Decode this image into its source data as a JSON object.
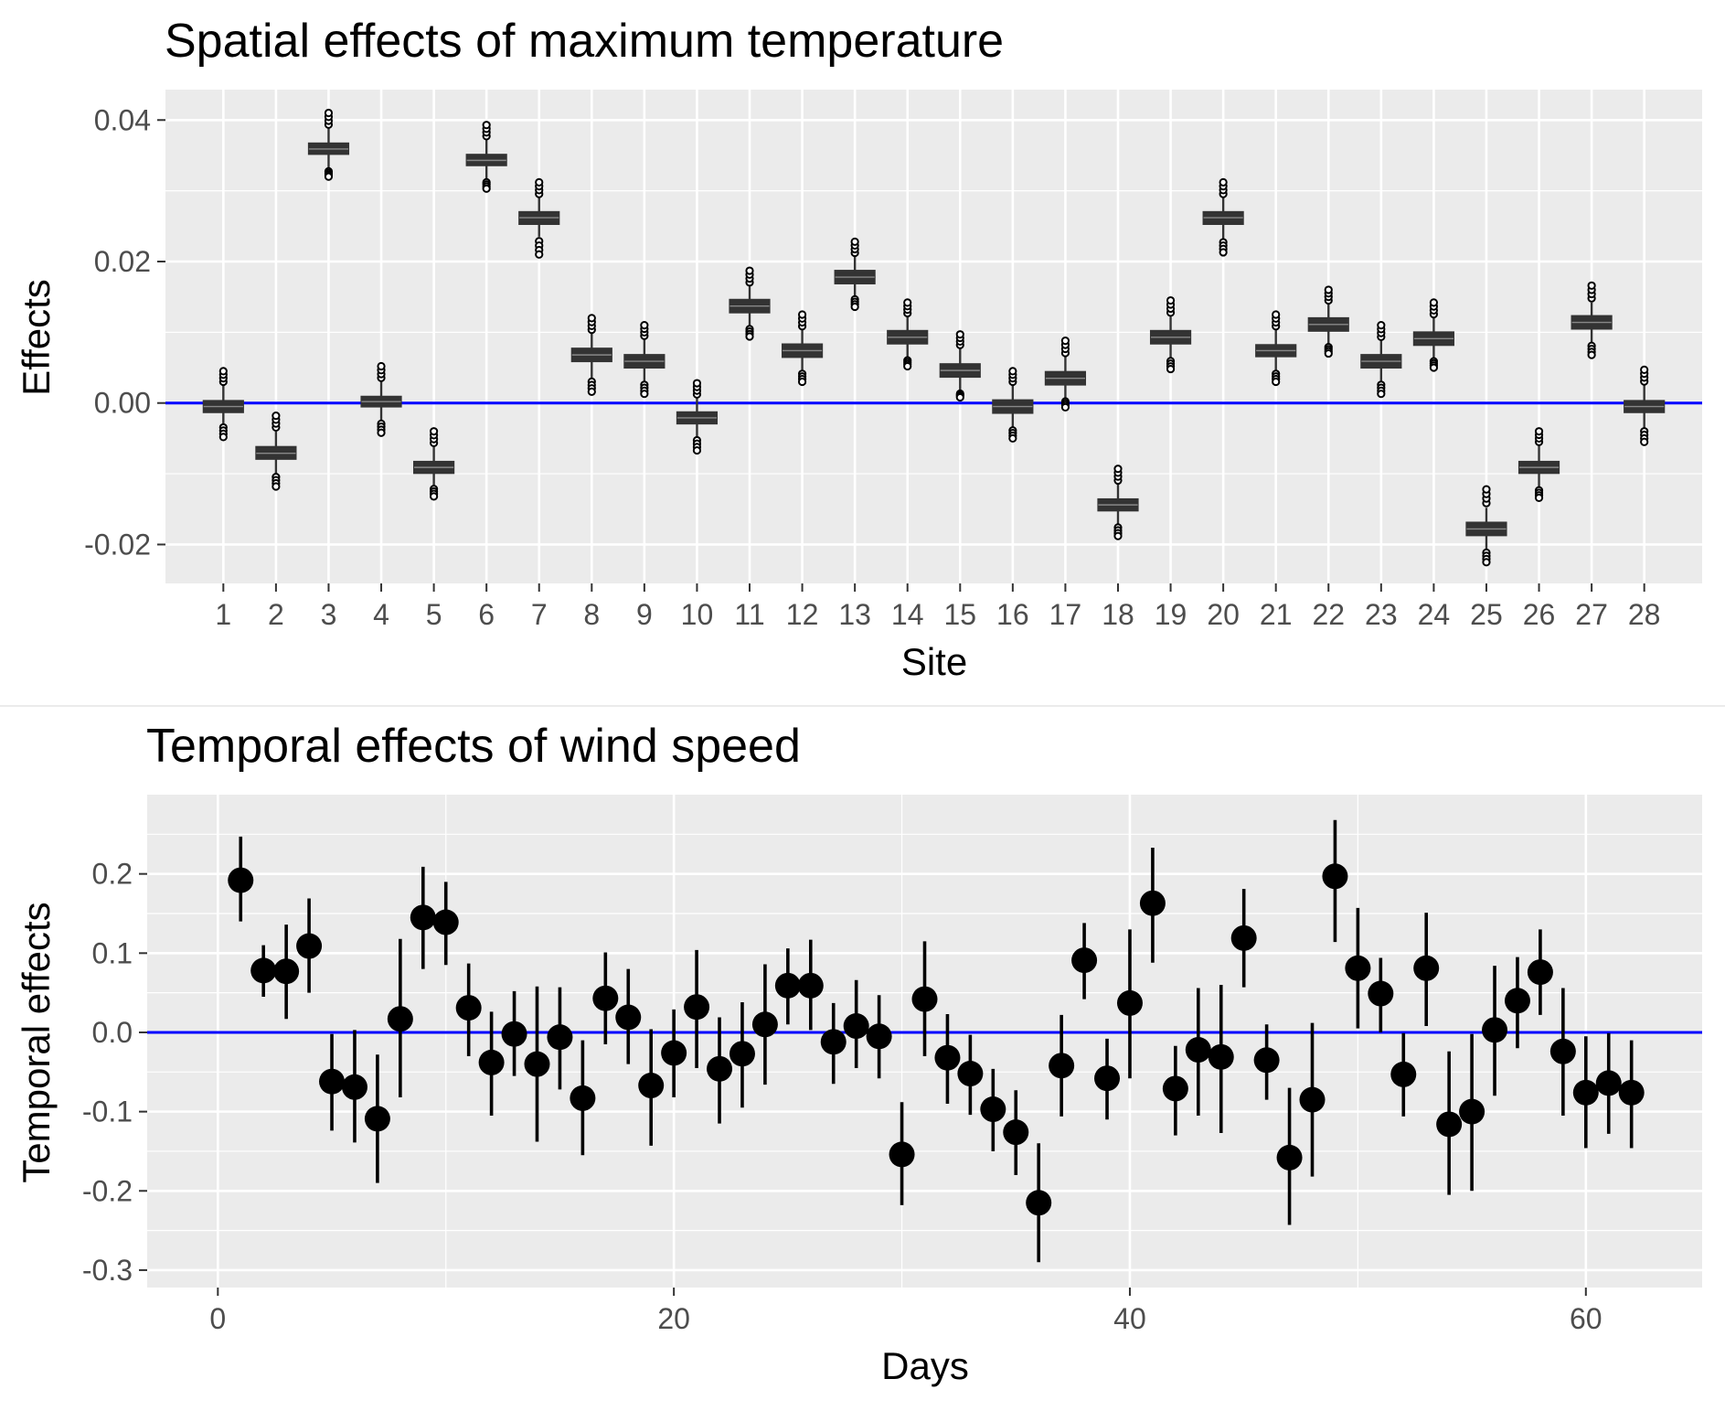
{
  "chart_data": [
    {
      "type": "box",
      "title": "Spatial effects of maximum temperature",
      "xlabel": "Site",
      "ylabel": "Effects",
      "categories": [
        "1",
        "2",
        "3",
        "4",
        "5",
        "6",
        "7",
        "8",
        "9",
        "10",
        "11",
        "12",
        "13",
        "14",
        "15",
        "16",
        "17",
        "18",
        "19",
        "20",
        "21",
        "22",
        "23",
        "24",
        "25",
        "26",
        "27",
        "28"
      ],
      "medians": [
        -0.0005,
        -0.0071,
        0.0359,
        0.0002,
        -0.0091,
        0.0343,
        0.0262,
        0.0068,
        0.0059,
        -0.0021,
        0.0137,
        0.0074,
        0.0178,
        0.0093,
        0.0046,
        -0.0005,
        0.0035,
        -0.0144,
        0.0093,
        0.0262,
        0.0074,
        0.0111,
        0.0059,
        0.0091,
        -0.0178,
        -0.0091,
        0.0114,
        -0.0005
      ],
      "q1": [
        -0.0013,
        -0.0079,
        0.0352,
        -0.0005,
        -0.0099,
        0.0336,
        0.0253,
        0.0059,
        0.005,
        -0.0029,
        0.0128,
        0.0065,
        0.0169,
        0.0084,
        0.0037,
        -0.0014,
        0.0026,
        -0.0152,
        0.0084,
        0.0253,
        0.0066,
        0.0102,
        0.005,
        0.0082,
        -0.0187,
        -0.0099,
        0.0105,
        -0.0013
      ],
      "q3": [
        0.0003,
        -0.0062,
        0.0367,
        0.0009,
        -0.0083,
        0.0351,
        0.027,
        0.0077,
        0.0068,
        -0.0013,
        0.0146,
        0.0083,
        0.0187,
        0.0102,
        0.0055,
        0.0004,
        0.0044,
        -0.0136,
        0.0102,
        0.027,
        0.0082,
        0.012,
        0.0068,
        0.01,
        -0.0169,
        -0.0083,
        0.0123,
        0.0003
      ],
      "whisker_low": [
        -0.003,
        -0.01,
        0.033,
        -0.0025,
        -0.0118,
        0.0315,
        0.0235,
        0.0035,
        0.003,
        -0.0048,
        0.0108,
        0.0045,
        0.015,
        0.0063,
        0.0015,
        -0.0035,
        0.0005,
        -0.0172,
        0.0063,
        0.0232,
        0.0045,
        0.0082,
        0.003,
        0.0062,
        -0.0207,
        -0.012,
        0.0085,
        -0.0035
      ],
      "whisker_high": [
        0.0025,
        -0.004,
        0.0388,
        0.003,
        -0.0062,
        0.0372,
        0.029,
        0.0098,
        0.009,
        0.0007,
        0.0165,
        0.0103,
        0.0207,
        0.0122,
        0.0077,
        0.0025,
        0.0065,
        -0.0115,
        0.0122,
        0.029,
        0.0103,
        0.014,
        0.0088,
        0.012,
        -0.0148,
        -0.006,
        0.0142,
        0.0025
      ],
      "outlier_low": [
        -0.0048,
        -0.0118,
        0.032,
        -0.0042,
        -0.0132,
        0.0303,
        0.021,
        0.0016,
        0.0013,
        -0.0067,
        0.0094,
        0.003,
        0.0136,
        0.0052,
        0.0008,
        -0.005,
        -0.0006,
        -0.0188,
        0.0048,
        0.0213,
        0.003,
        0.007,
        0.0013,
        0.005,
        -0.0225,
        -0.0134,
        0.0068,
        -0.0055
      ],
      "outlier_high": [
        0.0045,
        -0.0018,
        0.041,
        0.0052,
        -0.004,
        0.0393,
        0.0312,
        0.012,
        0.011,
        0.0028,
        0.0187,
        0.0125,
        0.0228,
        0.0142,
        0.0097,
        0.0045,
        0.0088,
        -0.0093,
        0.0145,
        0.0312,
        0.0125,
        0.016,
        0.011,
        0.0142,
        -0.0122,
        -0.004,
        0.0166,
        0.0047
      ],
      "yticks": [
        -0.02,
        0.0,
        0.02,
        0.04
      ],
      "ytick_labels": [
        "-0.02",
        "0.00",
        "0.02",
        "0.04"
      ],
      "ylim": [
        -0.0255,
        0.0443
      ],
      "hline": 0,
      "hline_color": "#0000ff",
      "box_color": "#333333",
      "panel_bg": "#ebebeb",
      "grid": true
    },
    {
      "type": "errorbar",
      "title": "Temporal effects of wind speed",
      "xlabel": "Days",
      "ylabel": "Temporal effects",
      "x": [
        1,
        2,
        3,
        4,
        5,
        6,
        7,
        8,
        9,
        10,
        11,
        12,
        13,
        14,
        15,
        16,
        17,
        18,
        19,
        20,
        21,
        22,
        23,
        24,
        25,
        26,
        27,
        28,
        29,
        30,
        31,
        32,
        33,
        34,
        35,
        36,
        37,
        38,
        39,
        40,
        41,
        42,
        43,
        44,
        45,
        46,
        47,
        48,
        49,
        50,
        51,
        52,
        53,
        54,
        55,
        56,
        57,
        58,
        59,
        60,
        61,
        62
      ],
      "y": [
        0.192,
        0.078,
        0.077,
        0.109,
        -0.062,
        -0.069,
        -0.109,
        0.017,
        0.145,
        0.139,
        0.031,
        -0.038,
        -0.002,
        -0.04,
        -0.006,
        -0.083,
        0.043,
        0.019,
        -0.067,
        -0.026,
        0.032,
        -0.046,
        -0.027,
        0.01,
        0.059,
        0.059,
        -0.012,
        0.008,
        -0.005,
        -0.154,
        0.042,
        -0.032,
        -0.052,
        -0.097,
        -0.126,
        -0.215,
        -0.042,
        0.091,
        -0.058,
        0.037,
        0.163,
        -0.071,
        -0.022,
        -0.031,
        0.119,
        -0.035,
        -0.158,
        -0.085,
        0.197,
        0.081,
        0.049,
        -0.053,
        0.081,
        -0.116,
        -0.1,
        0.003,
        0.04,
        0.076,
        -0.024,
        -0.076,
        -0.064,
        -0.076
      ],
      "ylow": [
        0.14,
        0.045,
        0.017,
        0.05,
        -0.124,
        -0.139,
        -0.19,
        -0.082,
        0.08,
        0.085,
        -0.03,
        -0.105,
        -0.055,
        -0.138,
        -0.072,
        -0.155,
        -0.015,
        -0.04,
        -0.143,
        -0.082,
        -0.045,
        -0.115,
        -0.095,
        -0.066,
        0.01,
        0.003,
        -0.065,
        -0.045,
        -0.058,
        -0.218,
        -0.03,
        -0.09,
        -0.104,
        -0.15,
        -0.18,
        -0.29,
        -0.106,
        0.042,
        -0.11,
        -0.058,
        0.088,
        -0.13,
        -0.105,
        -0.127,
        0.057,
        -0.085,
        -0.243,
        -0.182,
        0.114,
        0.005,
        0.0,
        -0.106,
        0.008,
        -0.205,
        -0.2,
        -0.08,
        -0.02,
        0.022,
        -0.105,
        -0.146,
        -0.128,
        -0.146
      ],
      "yhigh": [
        0.247,
        0.11,
        0.136,
        0.169,
        -0.002,
        0.003,
        -0.028,
        0.118,
        0.209,
        0.19,
        0.087,
        0.026,
        0.052,
        0.058,
        0.057,
        -0.01,
        0.101,
        0.08,
        0.004,
        0.029,
        0.104,
        0.019,
        0.038,
        0.086,
        0.106,
        0.117,
        0.037,
        0.066,
        0.047,
        -0.088,
        0.115,
        0.023,
        -0.003,
        -0.046,
        -0.073,
        -0.14,
        0.022,
        0.138,
        -0.008,
        0.13,
        0.233,
        -0.017,
        0.056,
        0.06,
        0.181,
        0.01,
        -0.07,
        0.012,
        0.268,
        0.157,
        0.094,
        -0.001,
        0.151,
        -0.024,
        -0.002,
        0.084,
        0.095,
        0.13,
        0.056,
        -0.005,
        -0.001,
        -0.01
      ],
      "xticks": [
        0,
        20,
        40,
        60
      ],
      "xtick_labels": [
        "0",
        "20",
        "40",
        "60"
      ],
      "yticks": [
        -0.3,
        -0.2,
        -0.1,
        0.0,
        0.1,
        0.2
      ],
      "ytick_labels": [
        "-0.3",
        "-0.2",
        "-0.1",
        "0.0",
        "0.1",
        "0.2"
      ],
      "xlim": [
        -3.1,
        65.1
      ],
      "ylim": [
        -0.322,
        0.3
      ],
      "hline": 0,
      "hline_color": "#0000ff",
      "point_color": "#000000",
      "panel_bg": "#ebebeb",
      "grid": true
    }
  ]
}
